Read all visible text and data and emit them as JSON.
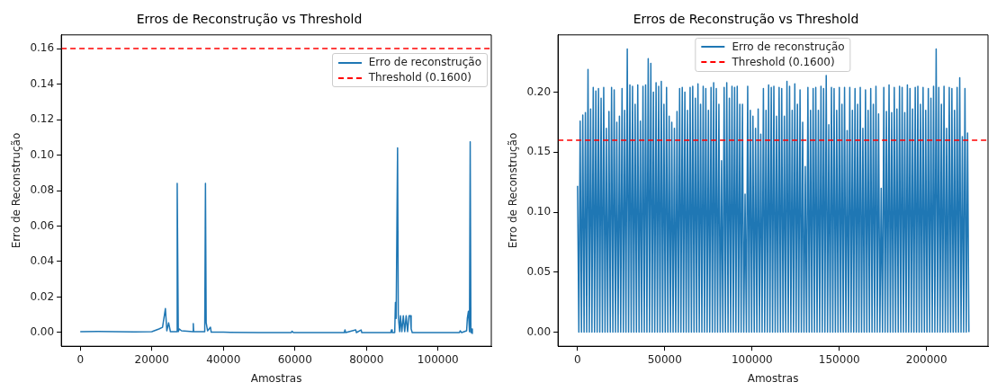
{
  "chart_data": [
    {
      "type": "line",
      "title": "Erros de Reconstrução vs Threshold",
      "xlabel": "Amostras",
      "ylabel": "Erro de Reconstrução",
      "xlim": [
        -5300,
        114900
      ],
      "xticks": [
        0,
        20000,
        40000,
        60000,
        80000,
        100000
      ],
      "ylim": [
        -0.0077,
        0.1677
      ],
      "yticks": [
        {
          "value": 0,
          "label": "0.00"
        },
        0.02,
        0.04,
        0.06,
        0.08,
        {
          "value": 0.1,
          "label": "0.10"
        },
        0.12,
        0.14,
        0.16
      ],
      "legend": "top right",
      "grid": false,
      "ref_lines": [
        {
          "axis": "y",
          "value": 0.16,
          "label": "Threshold (0.1600)",
          "color": "#ff0000",
          "line_style": "dashed"
        }
      ],
      "series": [
        {
          "name": "Erro de reconstrução",
          "color": "#1f77b4",
          "x": [
            0,
            5000,
            10000,
            15000,
            20000,
            22000,
            23000,
            23800,
            24200,
            24700,
            25200,
            26900,
            27100,
            27400,
            27700,
            28300,
            31500,
            31600,
            31700,
            34800,
            35000,
            35200,
            35600,
            36400,
            36600,
            40000,
            50000,
            59000,
            59200,
            59600,
            73800,
            74000,
            74200,
            77000,
            77200,
            78500,
            78700,
            86800,
            87000,
            87200,
            87900,
            88100,
            88300,
            88700,
            88900,
            89300,
            89500,
            89900,
            90300,
            90700,
            91100,
            91500,
            91900,
            92300,
            92500,
            92800,
            106000,
            106200,
            106600,
            108000,
            108200,
            108500,
            108800,
            109000,
            109200,
            109400,
            109600
          ],
          "values": [
            0.0005,
            0.0006,
            0.0005,
            0.0004,
            0.0005,
            0.002,
            0.003,
            0.0135,
            0.001,
            0.0055,
            0.0005,
            0.0005,
            0.084,
            0.0005,
            0.002,
            0.001,
            0.0005,
            0.005,
            0.0005,
            0.0005,
            0.084,
            0.0055,
            0.001,
            0.003,
            0.0002,
            0.0002,
            0,
            0,
            0.0008,
            0,
            0,
            0.0015,
            0,
            0.0015,
            0,
            0.0015,
            0,
            0,
            0.0015,
            0,
            0,
            0.017,
            0.008,
            0.104,
            0.009,
            0.0005,
            0.0095,
            0.0005,
            0.0095,
            0.0005,
            0.0095,
            0.0005,
            0.0095,
            0.0095,
            0.002,
            0,
            0,
            0.001,
            0,
            0.001,
            0.008,
            0.012,
            0.0005,
            0.1075,
            0,
            0.002,
            -0.0005
          ]
        }
      ]
    },
    {
      "type": "line",
      "title": "Erros de Reconstrução vs Threshold",
      "xlabel": "Amostras",
      "ylabel": "Erro de Reconstrução",
      "xlim": [
        -11200,
        235200
      ],
      "xticks": [
        0,
        50000,
        100000,
        150000,
        200000
      ],
      "ylim": [
        -0.0117,
        0.2478
      ],
      "yticks": [
        {
          "value": 0,
          "label": "0.00"
        },
        0.05,
        {
          "value": 0.1,
          "label": "0.10"
        },
        0.15,
        {
          "value": 0.2,
          "label": "0.20"
        }
      ],
      "legend": "top",
      "grid": false,
      "ref_lines": [
        {
          "axis": "y",
          "value": 0.16,
          "label": "Threshold (0.1600)",
          "color": "#ff0000",
          "line_style": "dashed"
        }
      ],
      "series": [
        {
          "name": "Erro de reconstrução",
          "color": "#1f77b4",
          "x": [
            0,
            750,
            1500,
            2250,
            3000,
            3750,
            4500,
            5250,
            6000,
            6750,
            7500,
            8250,
            9000,
            9750,
            10500,
            11250,
            12000,
            12750,
            13500,
            14250,
            15000,
            15750,
            16500,
            17250,
            18000,
            18750,
            19500,
            20250,
            21000,
            21750,
            22500,
            23250,
            24000,
            24750,
            25500,
            26250,
            27000,
            27750,
            28500,
            29250,
            30000,
            30750,
            31500,
            32250,
            33000,
            33750,
            34500,
            35250,
            36000,
            36750,
            37500,
            38250,
            39000,
            39750,
            40500,
            41250,
            42000,
            42750,
            43500,
            44250,
            45000,
            45750,
            46500,
            47250,
            48000,
            48750,
            49500,
            50250,
            51000,
            51750,
            52500,
            53250,
            54000,
            54750,
            55500,
            56250,
            57000,
            57750,
            58500,
            59250,
            60000,
            60750,
            61500,
            62250,
            63000,
            63750,
            64500,
            65250,
            66000,
            66750,
            67500,
            68250,
            69000,
            69750,
            70500,
            71250,
            72000,
            72750,
            73500,
            74250,
            75000,
            75750,
            76500,
            77250,
            78000,
            78750,
            79500,
            80250,
            81000,
            81750,
            82500,
            83250,
            84000,
            84750,
            85500,
            86250,
            87000,
            87750,
            88500,
            89250,
            90000,
            90750,
            91500,
            92250,
            93000,
            93750,
            94500,
            95250,
            96000,
            96750,
            97500,
            98250,
            99000,
            99750,
            100500,
            101250,
            102000,
            102750,
            103500,
            104250,
            105000,
            105750,
            106500,
            107250,
            108000,
            108750,
            109500,
            110250,
            111000,
            111750,
            112500,
            113250,
            114000,
            114750,
            115500,
            116250,
            117000,
            117750,
            118500,
            119250,
            120000,
            120750,
            121500,
            122250,
            123000,
            123750,
            124500,
            125250,
            126000,
            126750,
            127500,
            128250,
            129000,
            129750,
            130500,
            131250,
            132000,
            132750,
            133500,
            134250,
            135000,
            135750,
            136500,
            137250,
            138000,
            138750,
            139500,
            140250,
            141000,
            141750,
            142500,
            143250,
            144000,
            144750,
            145500,
            146250,
            147000,
            147750,
            148500,
            149250,
            150000,
            150750,
            151500,
            152250,
            153000,
            153750,
            154500,
            155250,
            156000,
            156750,
            157500,
            158250,
            159000,
            159750,
            160500,
            161250,
            162000,
            162750,
            163500,
            164250,
            165000,
            165750,
            166500,
            167250,
            168000,
            168750,
            169500,
            170250,
            171000,
            171750,
            172500,
            173250,
            174000,
            174750,
            175500,
            176250,
            177000,
            177750,
            178500,
            179250,
            180000,
            180750,
            181500,
            182250,
            183000,
            183750,
            184500,
            185250,
            186000,
            186750,
            187500,
            188250,
            189000,
            189750,
            190500,
            191250,
            192000,
            192750,
            193500,
            194250,
            195000,
            195750,
            196500,
            197250,
            198000,
            198750,
            199500,
            200250,
            201000,
            201750,
            202500,
            203250,
            204000,
            204750,
            205500,
            206250,
            207000,
            207750,
            208500,
            209250,
            210000,
            210750,
            211500,
            212250,
            213000,
            213750,
            214500,
            215250,
            216000,
            216750,
            217500,
            218250,
            219000,
            219750,
            220500,
            221250,
            222000,
            222750,
            223500,
            224250
          ],
          "values": [
            0.122,
            0,
            0.176,
            0,
            0.181,
            0,
            0.183,
            0,
            0.219,
            0,
            0.186,
            0,
            0.204,
            0,
            0.201,
            0,
            0.203,
            0,
            0.195,
            0,
            0.204,
            0,
            0.17,
            0,
            0.184,
            0,
            0.204,
            0,
            0.202,
            0,
            0.175,
            0,
            0.18,
            0,
            0.203,
            0,
            0.185,
            0,
            0.236,
            0,
            0.206,
            0,
            0.205,
            0,
            0.19,
            0,
            0.206,
            0,
            0.176,
            0,
            0.205,
            0,
            0.206,
            0,
            0.228,
            0,
            0.224,
            0,
            0.2,
            0,
            0.208,
            0,
            0.205,
            0,
            0.209,
            0,
            0.19,
            0,
            0.204,
            0,
            0.18,
            0,
            0.175,
            0,
            0.17,
            0,
            0.184,
            0,
            0.203,
            0,
            0.204,
            0,
            0.2,
            0,
            0.185,
            0,
            0.204,
            0,
            0.205,
            0,
            0.195,
            0,
            0.207,
            0,
            0.19,
            0,
            0.205,
            0,
            0.203,
            0,
            0.185,
            0,
            0.204,
            0,
            0.208,
            0,
            0.203,
            0,
            0.19,
            0,
            0.143,
            0,
            0.204,
            0,
            0.208,
            0,
            0.195,
            0,
            0.205,
            0,
            0.204,
            0,
            0.205,
            0,
            0.19,
            0,
            0.19,
            0,
            0.115,
            0,
            0.205,
            0,
            0.185,
            0,
            0.18,
            0,
            0.17,
            0,
            0.186,
            0,
            0.165,
            0,
            0.203,
            0,
            0.185,
            0,
            0.206,
            0,
            0.204,
            0,
            0.205,
            0,
            0.18,
            0,
            0.204,
            0,
            0.203,
            0,
            0.18,
            0,
            0.209,
            0,
            0.205,
            0,
            0.185,
            0,
            0.207,
            0,
            0.19,
            0,
            0.202,
            0,
            0.175,
            0,
            0.138,
            0,
            0.204,
            0,
            0.185,
            0,
            0.203,
            0,
            0.204,
            0,
            0.185,
            0,
            0.205,
            0,
            0.203,
            0,
            0.214,
            0,
            0.173,
            0,
            0.204,
            0,
            0.203,
            0,
            0.185,
            0,
            0.204,
            0,
            0.19,
            0,
            0.204,
            0,
            0.168,
            0,
            0.204,
            0,
            0.185,
            0,
            0.203,
            0,
            0.19,
            0,
            0.204,
            0,
            0.17,
            0,
            0.202,
            0,
            0.185,
            0,
            0.203,
            0,
            0.19,
            0,
            0.205,
            0,
            0.182,
            0,
            0.12,
            0,
            0.204,
            0,
            0.184,
            0,
            0.206,
            0,
            0.183,
            0,
            0.204,
            0,
            0.186,
            0,
            0.205,
            0,
            0.204,
            0,
            0.183,
            0,
            0.206,
            0,
            0.203,
            0,
            0.186,
            0,
            0.204,
            0,
            0.205,
            0,
            0.19,
            0,
            0.204,
            0,
            0.185,
            0,
            0.203,
            0,
            0.195,
            0,
            0.205,
            0,
            0.236,
            0,
            0.204,
            0,
            0.19,
            0,
            0.205,
            0,
            0.17,
            0,
            0.204,
            0,
            0.203,
            0,
            0.185,
            0,
            0.204,
            0,
            0.212,
            0,
            0.163,
            0,
            0.203,
            0,
            0.166,
            0
          ]
        }
      ]
    }
  ]
}
